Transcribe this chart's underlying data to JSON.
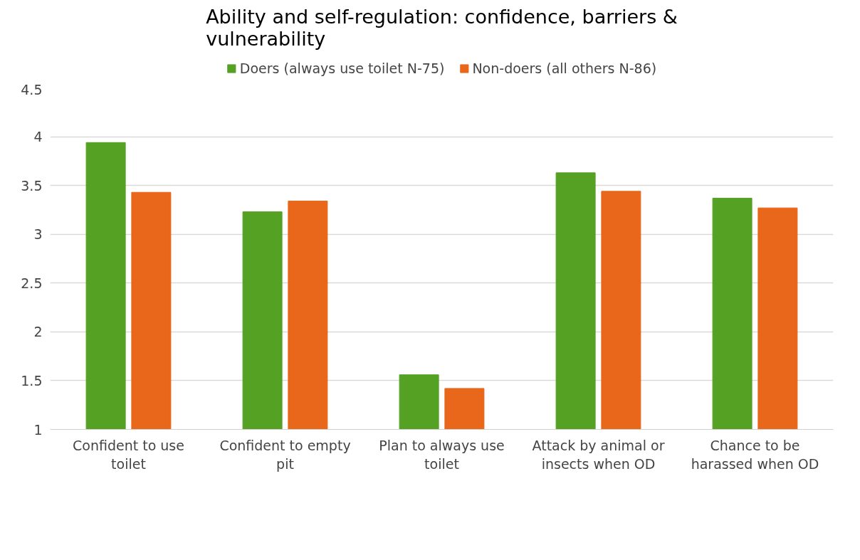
{
  "chart_data": {
    "type": "bar",
    "title": "Ability and self-regulation: confidence, barriers & vulnerability",
    "categories": [
      "Confident to use toilet",
      "Confident to empty pit",
      "Plan to always use toilet",
      "Attack by animal or insects when OD",
      "Chance to be harassed when OD"
    ],
    "series": [
      {
        "name": "Doers (always use toilet N-75)",
        "color": "#55a124",
        "values": [
          3.94,
          3.23,
          1.56,
          3.63,
          3.37
        ]
      },
      {
        "name": "Non-doers (all others N-86)",
        "color": "#e8671a",
        "values": [
          3.43,
          3.34,
          1.42,
          3.44,
          3.27
        ]
      }
    ],
    "ylim": [
      1,
      4.5
    ],
    "yticks": [
      1,
      1.5,
      2,
      2.5,
      3,
      3.5,
      4,
      4.5
    ],
    "grid": "y",
    "legend": "top"
  }
}
